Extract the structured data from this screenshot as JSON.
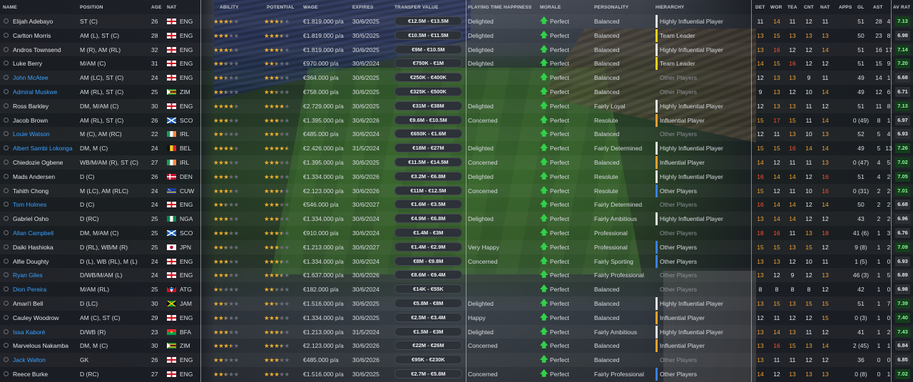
{
  "columns": {
    "name": "NAME",
    "position": "POSITION",
    "age": "AGE",
    "nat": "NAT",
    "ability": "ABILITY",
    "potential": "POTENTIAL",
    "wage": "WAGE",
    "expires": "EXPIRES",
    "transfer_value": "TRANSFER VALUE",
    "playing_time_happiness": "PLAYING TIME HAPPINESS",
    "morale": "MORALE",
    "personality": "PERSONALITY",
    "hierarchy": "HIERARCHY",
    "det": "DET",
    "wor": "WOR",
    "tea": "TEA",
    "cnt": "CNT",
    "nat_stat": "NAT",
    "apps": "APPS",
    "gl": "GL",
    "ast": "AST",
    "av_rating": "AV RAT"
  },
  "colors": {
    "positive_rating": "#8cf59a",
    "orange_attr": "#f0a030",
    "red_attr": "#ff5030",
    "morale_arrow": "#32d04a",
    "link_blue": "#3aa0ff"
  },
  "flags": {
    "ENG": "england-flag",
    "ZIM": "zimbabwe-flag",
    "SCO": "scotland-flag",
    "IRL": "ireland-flag",
    "BEL": "belgium-flag",
    "DEN": "denmark-flag",
    "CUW": "curacao-flag",
    "NGA": "nigeria-flag",
    "JPN": "japan-flag",
    "ATG": "antigua-flag",
    "JAM": "jamaica-flag",
    "BFA": "burkina-faso-flag"
  },
  "players": [
    {
      "name": "Elijah Adebayo",
      "link": false,
      "position": "ST (C)",
      "age": "26",
      "nat": "ENG",
      "ability": 3.5,
      "potential": 3.5,
      "wage": "€1.819.000 p/a",
      "expires": "30/6/2025",
      "transfer_value": "€12.5M - €13.5M",
      "pt_happiness": "Delighted",
      "morale": "Perfect",
      "personality": "Balanced",
      "hierarchy": "Highly Influential Player",
      "hierarchy_color": "#e8e8e8",
      "hier_dim": false,
      "det": "11",
      "wor": "14",
      "tea": "11",
      "cnt": "12",
      "nat_stat": "11",
      "apps": "51",
      "gl": "28",
      "ast": "4",
      "rating": "7.13"
    },
    {
      "name": "Carlton Morris",
      "link": false,
      "position": "AM (L), ST (C)",
      "age": "28",
      "nat": "ENG",
      "ability": 3,
      "potential": 3.5,
      "wage": "€1.819.000 p/a",
      "expires": "30/6/2025",
      "transfer_value": "€10.5M - €11.5M",
      "pt_happiness": "Delighted",
      "morale": "Perfect",
      "personality": "Balanced",
      "hierarchy": "Team Leader",
      "hierarchy_color": "#f5d020",
      "hier_dim": false,
      "det": "13",
      "wor": "15",
      "tea": "13",
      "cnt": "13",
      "nat_stat": "13",
      "apps": "50",
      "gl": "23",
      "ast": "8",
      "rating": "6.98"
    },
    {
      "name": "Andros Townsend",
      "link": false,
      "position": "M (R), AM (RL)",
      "age": "32",
      "nat": "ENG",
      "ability": 3.5,
      "potential": 3.5,
      "wage": "€1.819.000 p/a",
      "expires": "30/6/2025",
      "transfer_value": "€9M - €10.5M",
      "pt_happiness": "Delighted",
      "morale": "Perfect",
      "personality": "Balanced",
      "hierarchy": "Highly Influential Player",
      "hierarchy_color": "#e8e8e8",
      "hier_dim": false,
      "det": "13",
      "wor": "16",
      "tea": "12",
      "cnt": "12",
      "nat_stat": "14",
      "apps": "51",
      "gl": "16",
      "ast": "17",
      "rating": "7.14"
    },
    {
      "name": "Luke Berry",
      "link": false,
      "position": "M/AM (C)",
      "age": "31",
      "nat": "ENG",
      "ability": 2.5,
      "potential": 2.5,
      "wage": "€970.000 p/a",
      "expires": "30/6/2024",
      "transfer_value": "€750K - €1M",
      "pt_happiness": "Delighted",
      "morale": "Perfect",
      "personality": "Balanced",
      "hierarchy": "Team Leader",
      "hierarchy_color": "#f5d020",
      "hier_dim": false,
      "det": "14",
      "wor": "15",
      "tea": "16",
      "cnt": "12",
      "nat_stat": "12",
      "apps": "51",
      "gl": "15",
      "ast": "9",
      "rating": "7.20"
    },
    {
      "name": "John McAtee",
      "link": true,
      "position": "AM (LC), ST (C)",
      "age": "24",
      "nat": "ENG",
      "ability": 2.5,
      "potential": 3,
      "wage": "€364.000 p/a",
      "expires": "30/6/2025",
      "transfer_value": "€250K - €400K",
      "pt_happiness": "",
      "morale": "Perfect",
      "personality": "Balanced",
      "hierarchy": "Other Players",
      "hierarchy_color": "",
      "hier_dim": true,
      "det": "12",
      "wor": "13",
      "tea": "13",
      "cnt": "9",
      "nat_stat": "11",
      "apps": "49",
      "gl": "14",
      "ast": "1",
      "rating": "6.68"
    },
    {
      "name": "Admiral Muskwe",
      "link": true,
      "position": "AM (RL), ST (C)",
      "age": "25",
      "nat": "ZIM",
      "ability": 2.5,
      "potential": 2.5,
      "wage": "€758.000 p/a",
      "expires": "30/6/2025",
      "transfer_value": "€325K - €500K",
      "pt_happiness": "",
      "morale": "Perfect",
      "personality": "Balanced",
      "hierarchy": "Other Players",
      "hierarchy_color": "",
      "hier_dim": true,
      "det": "9",
      "wor": "13",
      "tea": "12",
      "cnt": "10",
      "nat_stat": "14",
      "apps": "49",
      "gl": "12",
      "ast": "6",
      "rating": "6.71"
    },
    {
      "name": "Ross Barkley",
      "link": false,
      "position": "DM, M/AM (C)",
      "age": "30",
      "nat": "ENG",
      "ability": 4,
      "potential": 4,
      "wage": "€2.729.000 p/a",
      "expires": "30/6/2025",
      "transfer_value": "€31M - €38M",
      "pt_happiness": "Delighted",
      "morale": "Perfect",
      "personality": "Fairly Loyal",
      "hierarchy": "Highly Influential Player",
      "hierarchy_color": "#e8e8e8",
      "hier_dim": false,
      "det": "12",
      "wor": "13",
      "tea": "13",
      "cnt": "11",
      "nat_stat": "12",
      "apps": "51",
      "gl": "11",
      "ast": "8",
      "rating": "7.13"
    },
    {
      "name": "Jacob Brown",
      "link": false,
      "position": "AM (RL), ST (C)",
      "age": "26",
      "nat": "SCO",
      "ability": 3,
      "potential": 3,
      "wage": "€1.395.000 p/a",
      "expires": "30/6/2026",
      "transfer_value": "€9.6M - €10.5M",
      "pt_happiness": "Concerned",
      "morale": "Perfect",
      "personality": "Resolute",
      "hierarchy": "Influential Player",
      "hierarchy_color": "#f0a030",
      "hier_dim": false,
      "det": "15",
      "wor": "17",
      "tea": "15",
      "cnt": "11",
      "nat_stat": "14",
      "apps": "0 (49)",
      "gl": "8",
      "ast": "1",
      "rating": "6.97"
    },
    {
      "name": "Louie Watson",
      "link": true,
      "position": "M (C), AM (RC)",
      "age": "22",
      "nat": "IRL",
      "ability": 2,
      "potential": 3,
      "wage": "€485.000 p/a",
      "expires": "30/6/2024",
      "transfer_value": "€650K - €1.6M",
      "pt_happiness": "",
      "morale": "Perfect",
      "personality": "Balanced",
      "hierarchy": "Other Players",
      "hierarchy_color": "",
      "hier_dim": true,
      "det": "12",
      "wor": "11",
      "tea": "13",
      "cnt": "10",
      "nat_stat": "13",
      "apps": "52",
      "gl": "5",
      "ast": "4",
      "rating": "6.93"
    },
    {
      "name": "Albert Sambi Lokonga",
      "link": true,
      "position": "DM, M (C)",
      "age": "24",
      "nat": "BEL",
      "ability": 4,
      "potential": 4.5,
      "wage": "€2.426.000 p/a",
      "expires": "31/5/2024",
      "transfer_value": "€18M - €27M",
      "pt_happiness": "Delighted",
      "morale": "Perfect",
      "personality": "Fairly Determined",
      "hierarchy": "Highly Influential Player",
      "hierarchy_color": "#e8e8e8",
      "hier_dim": false,
      "det": "15",
      "wor": "15",
      "tea": "16",
      "cnt": "14",
      "nat_stat": "14",
      "apps": "49",
      "gl": "5",
      "ast": "13",
      "rating": "7.26"
    },
    {
      "name": "Chiedozie Ogbene",
      "link": false,
      "position": "WB/M/AM (R), ST (C)",
      "age": "27",
      "nat": "IRL",
      "ability": 3,
      "potential": 3,
      "wage": "€1.395.000 p/a",
      "expires": "30/6/2025",
      "transfer_value": "€11.5M - €14.5M",
      "pt_happiness": "Concerned",
      "morale": "Perfect",
      "personality": "Balanced",
      "hierarchy": "Influential Player",
      "hierarchy_color": "#f0a030",
      "hier_dim": false,
      "det": "14",
      "wor": "12",
      "tea": "11",
      "cnt": "11",
      "nat_stat": "13",
      "apps": "0 (47)",
      "gl": "4",
      "ast": "5",
      "rating": "7.02"
    },
    {
      "name": "Mads Andersen",
      "link": false,
      "position": "D (C)",
      "age": "26",
      "nat": "DEN",
      "ability": 3,
      "potential": 3,
      "wage": "€1.334.000 p/a",
      "expires": "30/6/2026",
      "transfer_value": "€3.2M - €6.8M",
      "pt_happiness": "Delighted",
      "morale": "Perfect",
      "personality": "Resolute",
      "hierarchy": "Highly Influential Player",
      "hierarchy_color": "#e8e8e8",
      "hier_dim": false,
      "det": "16",
      "wor": "14",
      "tea": "14",
      "cnt": "12",
      "nat_stat": "16",
      "apps": "51",
      "gl": "4",
      "ast": "2",
      "rating": "7.05"
    },
    {
      "name": "Tahith Chong",
      "link": false,
      "position": "M (LC), AM (RLC)",
      "age": "24",
      "nat": "CUW",
      "ability": 3.5,
      "potential": 3.5,
      "wage": "€2.123.000 p/a",
      "expires": "30/6/2026",
      "transfer_value": "€11M - €12.5M",
      "pt_happiness": "Concerned",
      "morale": "Perfect",
      "personality": "Resolute",
      "hierarchy": "Other Players",
      "hierarchy_color": "#3a80e0",
      "hier_dim": false,
      "det": "15",
      "wor": "12",
      "tea": "11",
      "cnt": "10",
      "nat_stat": "16",
      "apps": "0 (31)",
      "gl": "2",
      "ast": "2",
      "rating": "7.01"
    },
    {
      "name": "Tom Holmes",
      "link": true,
      "position": "D (C)",
      "age": "24",
      "nat": "ENG",
      "ability": 2.5,
      "potential": 3,
      "wage": "€546.000 p/a",
      "expires": "30/6/2027",
      "transfer_value": "€1.6M - €3.5M",
      "pt_happiness": "",
      "morale": "Perfect",
      "personality": "Fairly Determined",
      "hierarchy": "Other Players",
      "hierarchy_color": "",
      "hier_dim": true,
      "det": "16",
      "wor": "14",
      "tea": "14",
      "cnt": "12",
      "nat_stat": "14",
      "apps": "50",
      "gl": "2",
      "ast": "2",
      "rating": "6.68"
    },
    {
      "name": "Gabriel Osho",
      "link": false,
      "position": "D (RC)",
      "age": "25",
      "nat": "NGA",
      "ability": 3,
      "potential": 3,
      "wage": "€1.334.000 p/a",
      "expires": "30/6/2024",
      "transfer_value": "€4.9M - €6.8M",
      "pt_happiness": "Delighted",
      "morale": "Perfect",
      "personality": "Fairly Ambitious",
      "hierarchy": "Highly Influential Player",
      "hierarchy_color": "#e8e8e8",
      "hier_dim": false,
      "det": "13",
      "wor": "14",
      "tea": "14",
      "cnt": "12",
      "nat_stat": "12",
      "apps": "43",
      "gl": "2",
      "ast": "2",
      "rating": "6.96"
    },
    {
      "name": "Allan Campbell",
      "link": true,
      "position": "DM, M/AM (C)",
      "age": "25",
      "nat": "SCO",
      "ability": 3,
      "potential": 3.5,
      "wage": "€910.000 p/a",
      "expires": "30/6/2024",
      "transfer_value": "€1.4M - €3M",
      "pt_happiness": "",
      "morale": "Perfect",
      "personality": "Professional",
      "hierarchy": "Other Players",
      "hierarchy_color": "",
      "hier_dim": true,
      "det": "18",
      "wor": "16",
      "tea": "11",
      "cnt": "13",
      "nat_stat": "18",
      "apps": "41 (6)",
      "gl": "1",
      "ast": "3",
      "rating": "6.76"
    },
    {
      "name": "Daiki Hashioka",
      "link": false,
      "position": "D (RL), WB/M (R)",
      "age": "25",
      "nat": "JPN",
      "ability": 2.5,
      "potential": 3,
      "wage": "€1.213.000 p/a",
      "expires": "30/6/2027",
      "transfer_value": "€1.4M - €2.9M",
      "pt_happiness": "Very Happy",
      "morale": "Perfect",
      "personality": "Professional",
      "hierarchy": "Other Players",
      "hierarchy_color": "#3a80e0",
      "hier_dim": false,
      "det": "15",
      "wor": "15",
      "tea": "13",
      "cnt": "15",
      "nat_stat": "12",
      "apps": "9 (8)",
      "gl": "1",
      "ast": "2",
      "rating": "7.09"
    },
    {
      "name": "Alfie Doughty",
      "link": false,
      "position": "D (L), WB (RL), M (L)",
      "age": "24",
      "nat": "ENG",
      "ability": 3,
      "potential": 3.5,
      "wage": "€1.334.000 p/a",
      "expires": "30/6/2024",
      "transfer_value": "€8M - €9.8M",
      "pt_happiness": "Concerned",
      "morale": "Perfect",
      "personality": "Fairly Sporting",
      "hierarchy": "Other Players",
      "hierarchy_color": "#3a80e0",
      "hier_dim": false,
      "det": "13",
      "wor": "13",
      "tea": "12",
      "cnt": "10",
      "nat_stat": "11",
      "apps": "1 (5)",
      "gl": "1",
      "ast": "0",
      "rating": "6.93"
    },
    {
      "name": "Ryan Giles",
      "link": true,
      "position": "D/WB/M/AM (L)",
      "age": "24",
      "nat": "ENG",
      "ability": 3,
      "potential": 3.5,
      "wage": "€1.637.000 p/a",
      "expires": "30/6/2026",
      "transfer_value": "€8.6M - €9.4M",
      "pt_happiness": "",
      "morale": "Perfect",
      "personality": "Fairly Professional",
      "hierarchy": "Other Players",
      "hierarchy_color": "",
      "hier_dim": true,
      "det": "13",
      "wor": "12",
      "tea": "9",
      "cnt": "12",
      "nat_stat": "13",
      "apps": "46 (3)",
      "gl": "1",
      "ast": "5",
      "rating": "6.89"
    },
    {
      "name": "Dion Pereira",
      "link": true,
      "position": "M/AM (RL)",
      "age": "25",
      "nat": "ATG",
      "ability": 1.5,
      "potential": 2,
      "wage": "€182.000 p/a",
      "expires": "30/6/2024",
      "transfer_value": "€14K - €55K",
      "pt_happiness": "",
      "morale": "Perfect",
      "personality": "Balanced",
      "hierarchy": "Other Players",
      "hierarchy_color": "",
      "hier_dim": true,
      "det": "8",
      "wor": "8",
      "tea": "8",
      "cnt": "8",
      "nat_stat": "12",
      "apps": "42",
      "gl": "1",
      "ast": "0",
      "rating": "6.98"
    },
    {
      "name": "Amari'i Bell",
      "link": false,
      "position": "D (LC)",
      "age": "30",
      "nat": "JAM",
      "ability": 2.5,
      "potential": 2.5,
      "wage": "€1.516.000 p/a",
      "expires": "30/6/2025",
      "transfer_value": "€5.8M - €8M",
      "pt_happiness": "Delighted",
      "morale": "Perfect",
      "personality": "Balanced",
      "hierarchy": "Highly Influential Player",
      "hierarchy_color": "#e8e8e8",
      "hier_dim": false,
      "det": "13",
      "wor": "15",
      "tea": "13",
      "cnt": "15",
      "nat_stat": "15",
      "apps": "51",
      "gl": "1",
      "ast": "7",
      "rating": "7.39"
    },
    {
      "name": "Cauley Woodrow",
      "link": false,
      "position": "AM (C), ST (C)",
      "age": "29",
      "nat": "ENG",
      "ability": 2.5,
      "potential": 3,
      "wage": "€1.334.000 p/a",
      "expires": "30/6/2025",
      "transfer_value": "€2.5M - €3.4M",
      "pt_happiness": "Happy",
      "morale": "Perfect",
      "personality": "Balanced",
      "hierarchy": "Influential Player",
      "hierarchy_color": "#f0a030",
      "hier_dim": false,
      "det": "12",
      "wor": "11",
      "tea": "12",
      "cnt": "12",
      "nat_stat": "15",
      "apps": "0 (3)",
      "gl": "1",
      "ast": "0",
      "rating": "7.40"
    },
    {
      "name": "Issa Kaboré",
      "link": true,
      "position": "D/WB (R)",
      "age": "23",
      "nat": "BFA",
      "ability": 3,
      "potential": 3.5,
      "wage": "€1.213.000 p/a",
      "expires": "31/5/2024",
      "transfer_value": "€1.5M - €3M",
      "pt_happiness": "Delighted",
      "morale": "Perfect",
      "personality": "Fairly Ambitious",
      "hierarchy": "Highly Influential Player",
      "hierarchy_color": "#e8e8e8",
      "hier_dim": false,
      "det": "13",
      "wor": "14",
      "tea": "13",
      "cnt": "11",
      "nat_stat": "12",
      "apps": "41",
      "gl": "1",
      "ast": "2",
      "rating": "7.43"
    },
    {
      "name": "Marvelous Nakamba",
      "link": false,
      "position": "DM, M (C)",
      "age": "30",
      "nat": "ZIM",
      "ability": 3.5,
      "potential": 3.5,
      "wage": "€2.123.000 p/a",
      "expires": "30/6/2026",
      "transfer_value": "€22M - €26M",
      "pt_happiness": "Concerned",
      "morale": "Perfect",
      "personality": "Balanced",
      "hierarchy": "Influential Player",
      "hierarchy_color": "#f0a030",
      "hier_dim": false,
      "det": "13",
      "wor": "16",
      "tea": "15",
      "cnt": "13",
      "nat_stat": "14",
      "apps": "2 (45)",
      "gl": "1",
      "ast": "1",
      "rating": "6.84"
    },
    {
      "name": "Jack Walton",
      "link": true,
      "position": "GK",
      "age": "26",
      "nat": "ENG",
      "ability": 2,
      "potential": 3,
      "wage": "€485.000 p/a",
      "expires": "30/6/2026",
      "transfer_value": "€95K - €230K",
      "pt_happiness": "",
      "morale": "Perfect",
      "personality": "Balanced",
      "hierarchy": "Other Players",
      "hierarchy_color": "",
      "hier_dim": true,
      "det": "13",
      "wor": "11",
      "tea": "11",
      "cnt": "12",
      "nat_stat": "12",
      "apps": "36",
      "gl": "0",
      "ast": "0",
      "rating": "6.85"
    },
    {
      "name": "Reece Burke",
      "link": false,
      "position": "D (RC)",
      "age": "27",
      "nat": "ENG",
      "ability": 2.5,
      "potential": 3,
      "wage": "€1.516.000 p/a",
      "expires": "30/6/2025",
      "transfer_value": "€2.7M - €5.8M",
      "pt_happiness": "Concerned",
      "morale": "Perfect",
      "personality": "Fairly Professional",
      "hierarchy": "Other Players",
      "hierarchy_color": "#3a80e0",
      "hier_dim": false,
      "det": "14",
      "wor": "12",
      "tea": "13",
      "cnt": "13",
      "nat_stat": "13",
      "apps": "0 (8)",
      "gl": "0",
      "ast": "1",
      "rating": "7.02"
    }
  ]
}
